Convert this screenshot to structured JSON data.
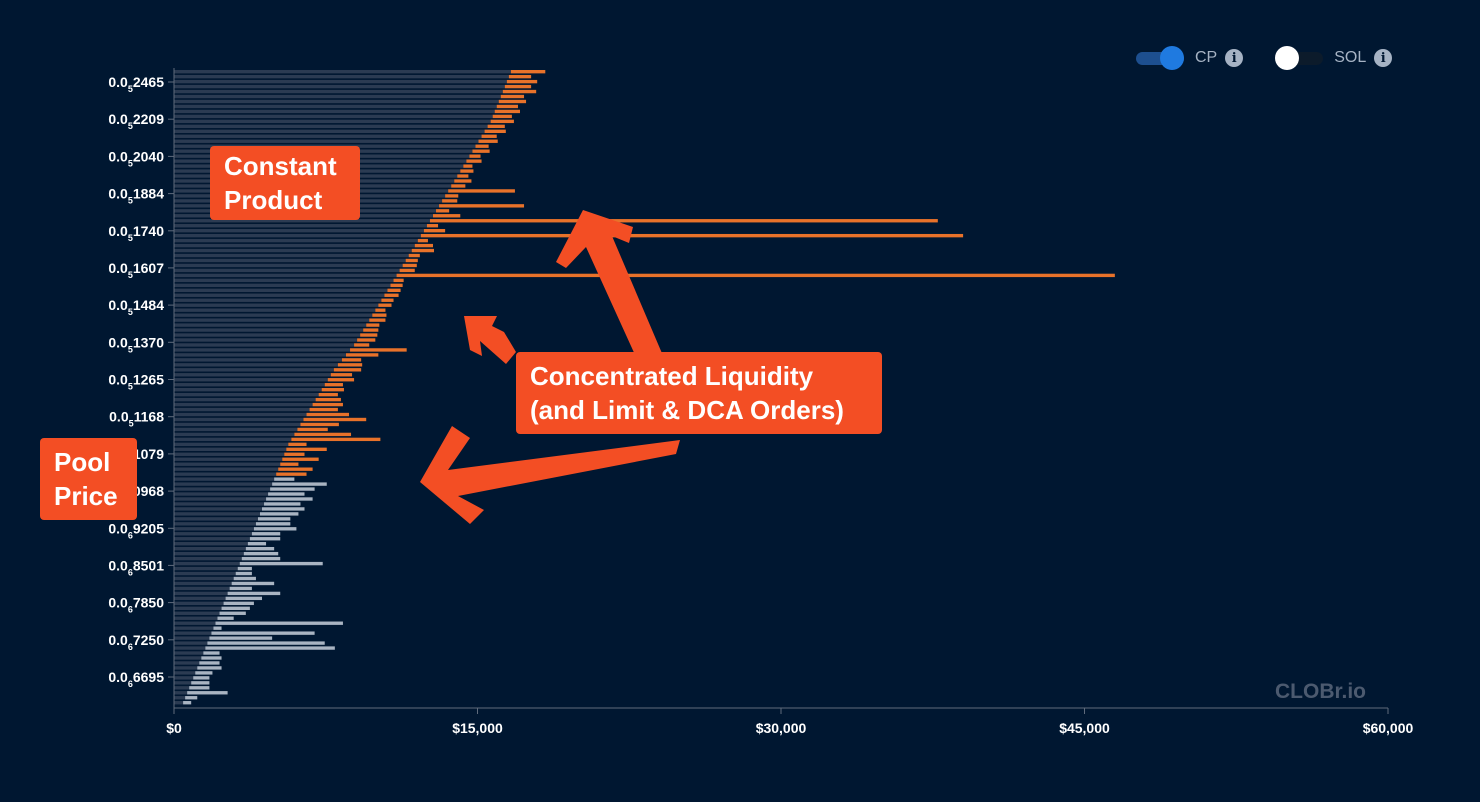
{
  "toggles": [
    {
      "label": "CP",
      "on": true,
      "info_icon": "info-icon"
    },
    {
      "label": "SOL",
      "on": false,
      "info_icon": "info-icon"
    }
  ],
  "watermark": "CLOBr.io",
  "callouts": {
    "constant_product": "Constant\nProduct",
    "concentrated": "Concentrated Liquidity\n(and Limit & DCA Orders)",
    "pool_price": "Pool\nPrice"
  },
  "colors": {
    "background": "#001731",
    "constant_product_bars": "#2b3b52",
    "liquidity_above_price": "#e8722a",
    "liquidity_below_price": "#a9b4c2",
    "callout": "#f34e24",
    "toggle_on": "#1f7ae0"
  },
  "chart_data": {
    "type": "bar",
    "orientation": "horizontal",
    "x_ticks": [
      "$0",
      "$15,000",
      "$30,000",
      "$45,000",
      "$60,000"
    ],
    "xlim": [
      0,
      60000
    ],
    "y_tick_labels": [
      {
        "prefix": "0.0",
        "sub": "5",
        "digits": "2465"
      },
      {
        "prefix": "0.0",
        "sub": "5",
        "digits": "2209"
      },
      {
        "prefix": "0.0",
        "sub": "5",
        "digits": "2040"
      },
      {
        "prefix": "0.0",
        "sub": "5",
        "digits": "1884"
      },
      {
        "prefix": "0.0",
        "sub": "5",
        "digits": "1740"
      },
      {
        "prefix": "0.0",
        "sub": "5",
        "digits": "1607"
      },
      {
        "prefix": "0.0",
        "sub": "5",
        "digits": "1484"
      },
      {
        "prefix": "0.0",
        "sub": "5",
        "digits": "1370"
      },
      {
        "prefix": "0.0",
        "sub": "5",
        "digits": "1265"
      },
      {
        "prefix": "0.0",
        "sub": "5",
        "digits": "1168"
      },
      {
        "prefix": "0.0",
        "sub": "5",
        "digits": "1079"
      },
      {
        "prefix": "0.0",
        "sub": "5",
        "digits": "0968"
      },
      {
        "prefix": "0.0",
        "sub": "6",
        "digits": "9205"
      },
      {
        "prefix": "0.0",
        "sub": "6",
        "digits": "8501"
      },
      {
        "prefix": "0.0",
        "sub": "6",
        "digits": "7850"
      },
      {
        "prefix": "0.0",
        "sub": "6",
        "digits": "7250"
      },
      {
        "prefix": "0.0",
        "sub": "6",
        "digits": "6695"
      }
    ],
    "series": [
      {
        "key": "constant_product",
        "values": [
          16650,
          16550,
          16450,
          16350,
          16250,
          16150,
          16050,
          15950,
          15850,
          15750,
          15650,
          15500,
          15350,
          15200,
          15050,
          14900,
          14750,
          14600,
          14450,
          14300,
          14150,
          14000,
          13850,
          13700,
          13550,
          13400,
          13250,
          13100,
          12950,
          12800,
          12650,
          12500,
          12350,
          12200,
          12050,
          11900,
          11750,
          11600,
          11450,
          11300,
          11150,
          11000,
          10850,
          10700,
          10550,
          10400,
          10250,
          10100,
          9950,
          9800,
          9650,
          9500,
          9350,
          9200,
          9050,
          8900,
          8700,
          8500,
          8300,
          8100,
          7900,
          7750,
          7600,
          7450,
          7300,
          7150,
          7000,
          6850,
          6700,
          6550,
          6400,
          6250,
          6100,
          5950,
          5800,
          5650,
          5550,
          5450,
          5350,
          5250,
          5150,
          5050,
          4950,
          4850,
          4750,
          4650,
          4550,
          4450,
          4350,
          4250,
          4150,
          4050,
          3950,
          3850,
          3750,
          3650,
          3550,
          3450,
          3350,
          3250,
          3150,
          3050,
          2950,
          2850,
          2750,
          2650,
          2550,
          2450,
          2350,
          2250,
          2150,
          2050,
          1950,
          1850,
          1750,
          1650,
          1550,
          1450,
          1350,
          1250,
          1150,
          1050,
          950,
          850,
          750,
          650,
          550,
          450
        ]
      },
      {
        "key": "concentrated_liquidity_above_price",
        "values": [
          1700,
          1100,
          1500,
          1300,
          1650,
          1150,
          1350,
          1050,
          1250,
          950,
          1150,
          850,
          1050,
          750,
          950,
          650,
          850,
          550,
          750,
          450,
          650,
          550,
          850,
          700,
          3300,
          650,
          750,
          4200,
          650,
          1350,
          25100,
          550,
          1050,
          26800,
          500,
          900,
          1100,
          550,
          600,
          700,
          750,
          35500,
          500,
          600,
          650,
          700,
          600,
          650,
          500,
          700,
          800,
          650,
          750,
          850,
          900,
          750,
          2800,
          1600,
          950,
          1200,
          1350,
          1050,
          1300,
          900,
          1100,
          950,
          1250,
          1500,
          1400,
          2100,
          3100,
          1900,
          1500,
          2800,
          4400,
          900,
          2000,
          1000,
          1800,
          900,
          1700,
          1500
        ]
      },
      {
        "key": "concentrated_liquidity_below_price",
        "values": [
          1000,
          2700,
          2200,
          1800,
          2300,
          1800,
          2100,
          1900,
          1600,
          1700,
          2100,
          1400,
          1500,
          900,
          1400,
          1700,
          1900,
          4100,
          700,
          800,
          1100,
          2100,
          1100,
          2600,
          1800,
          1500,
          1400,
          1300,
          800,
          6300,
          400,
          5100,
          3100,
          5800,
          6400,
          800,
          1000,
          1000,
          1200,
          850,
          800,
          900,
          1000,
          2000,
          600,
          400,
          500,
          400,
          300,
          350,
          400,
          400,
          500,
          2800,
          400,
          500,
          300,
          2100,
          400,
          3400,
          500,
          300,
          200,
          250,
          350,
          400,
          1200
        ]
      }
    ]
  }
}
